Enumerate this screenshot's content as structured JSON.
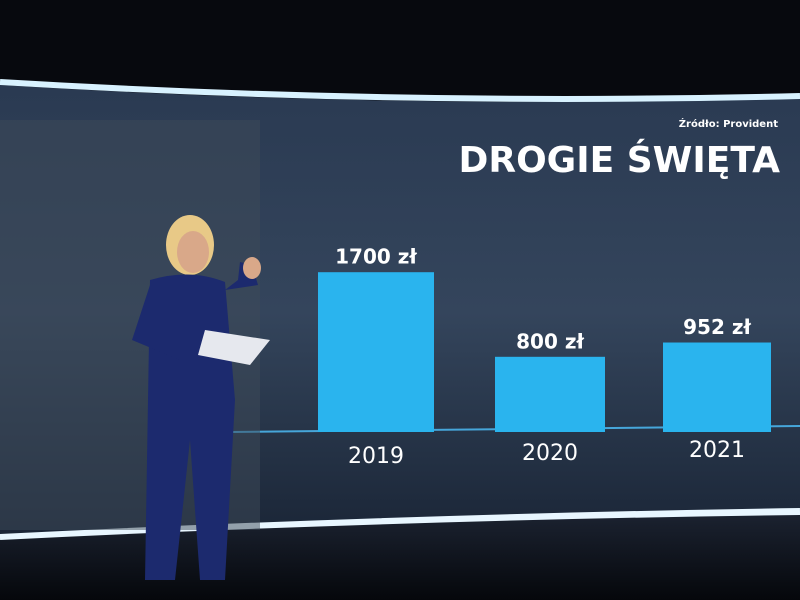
{
  "chart_data": {
    "type": "bar",
    "title": "DROGIE ŚWIĘTA",
    "source": "Źródło: Provident",
    "categories": [
      "2019",
      "2020",
      "2021"
    ],
    "values": [
      1700,
      800,
      952
    ],
    "value_labels": [
      "1700 zł",
      "800 zł",
      "952 zł"
    ],
    "color": "#2ab4ee"
  }
}
